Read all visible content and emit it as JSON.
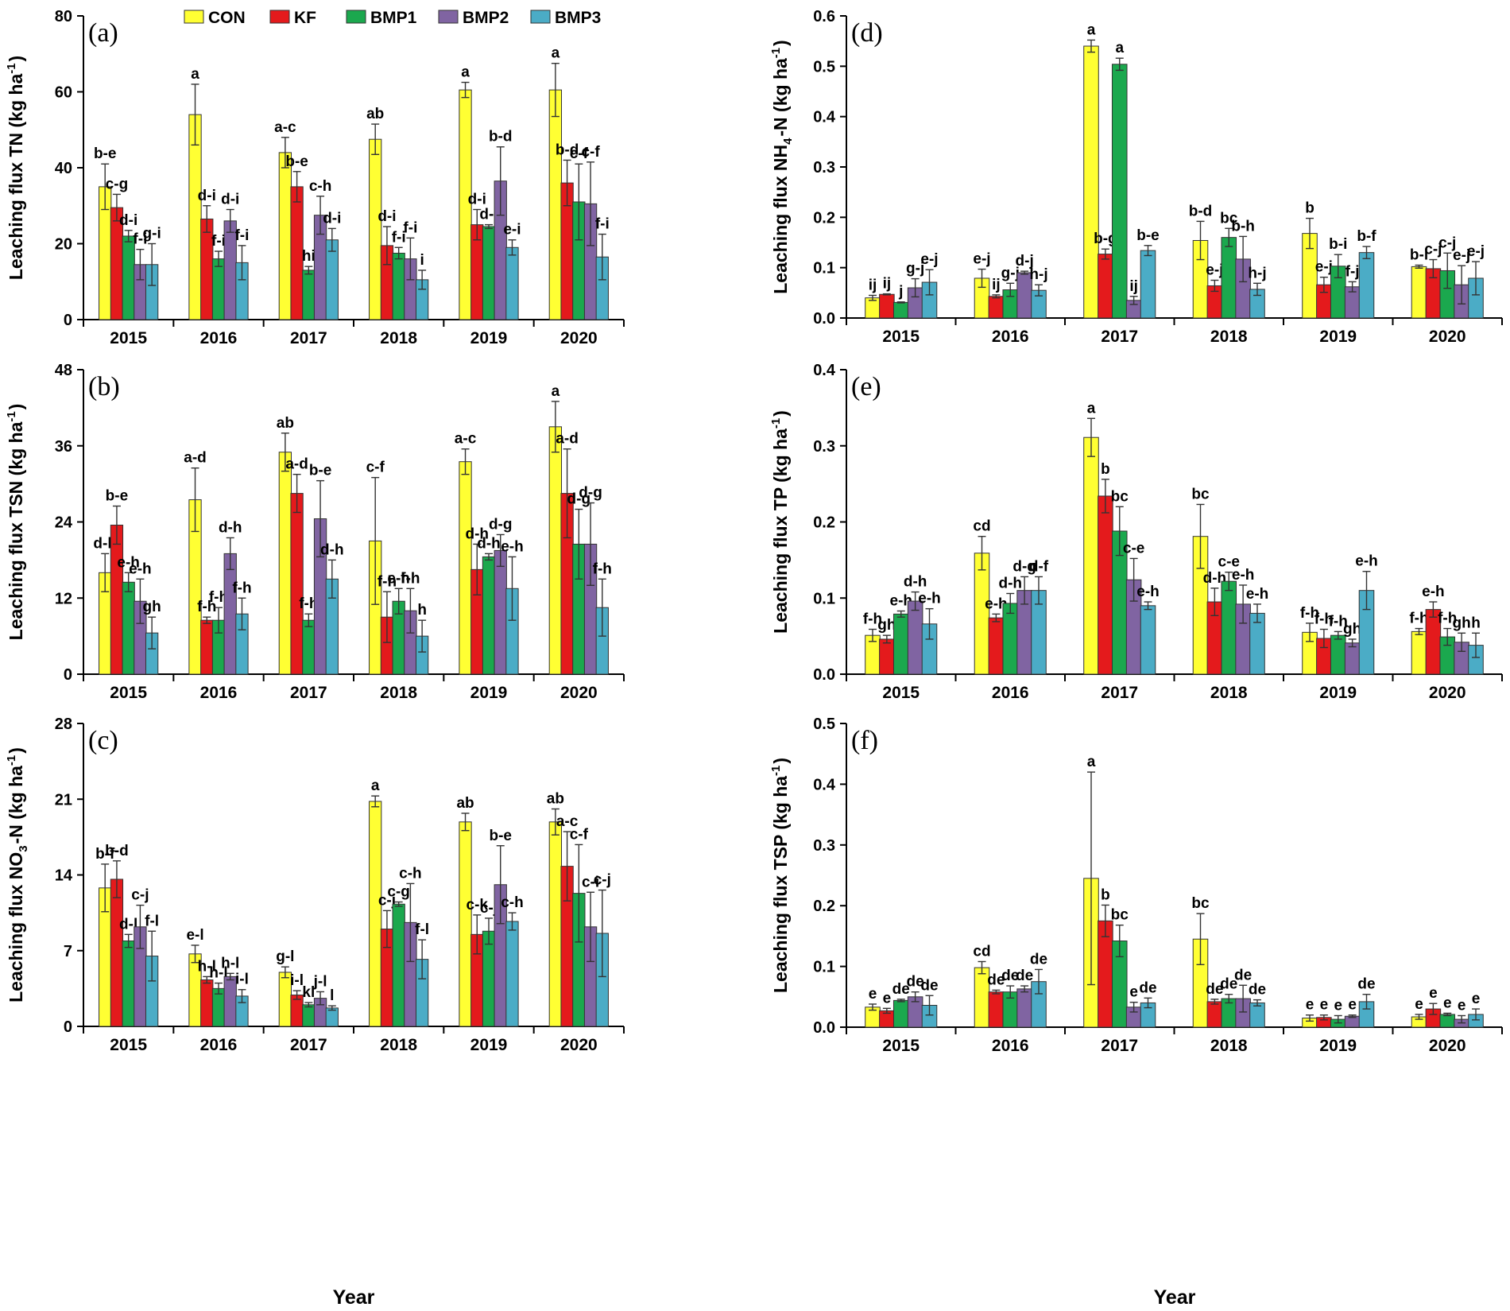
{
  "legend": {
    "entries": [
      {
        "name": "CON",
        "color": "#FFFF33"
      },
      {
        "name": "KF",
        "color": "#E41A1C"
      },
      {
        "name": "BMP1",
        "color": "#1BA84E"
      },
      {
        "name": "BMP2",
        "color": "#8064A2"
      },
      {
        "name": "BMP3",
        "color": "#4BACC6"
      }
    ]
  },
  "xlabel": "Year",
  "chart_data": [
    {
      "type": "bar",
      "panel": "(a)",
      "ylabel": "Leaching flux TN (kg ha-1)",
      "ylim": [
        0,
        80
      ],
      "yticks": [
        "0",
        "20",
        "40",
        "60",
        "80"
      ],
      "categories": [
        "2015",
        "2016",
        "2017",
        "2018",
        "2019",
        "2020"
      ],
      "series": [
        {
          "name": "CON",
          "values": [
            35,
            54,
            44,
            47.5,
            60.5,
            60.5
          ],
          "errors": [
            6,
            8,
            4,
            4,
            2,
            7
          ],
          "labels": [
            "b-e",
            "a",
            "a-c",
            "ab",
            "a",
            "a"
          ]
        },
        {
          "name": "KF",
          "values": [
            29.5,
            26.5,
            35,
            19.5,
            25,
            36
          ],
          "errors": [
            3.5,
            3.5,
            4,
            5,
            4,
            6
          ],
          "labels": [
            "c-g",
            "d-i",
            "b-e",
            "d-i",
            "d-i",
            "b-d"
          ]
        },
        {
          "name": "BMP1",
          "values": [
            22,
            16,
            13,
            17.5,
            24.5,
            31
          ],
          "errors": [
            1.5,
            2,
            1,
            1.5,
            0.5,
            10
          ],
          "labels": [
            "d-i",
            "f-i",
            "hi",
            "f-i",
            "d-i",
            "c-f"
          ]
        },
        {
          "name": "BMP2",
          "values": [
            14.5,
            26,
            27.5,
            16,
            36.5,
            30.5
          ],
          "errors": [
            4,
            3,
            5,
            5.5,
            9,
            11
          ],
          "labels": [
            "f-i",
            "d-i",
            "c-h",
            "f-i",
            "b-d",
            "c-f"
          ]
        },
        {
          "name": "BMP3",
          "values": [
            14.5,
            15,
            21,
            10.5,
            19,
            16.5
          ],
          "errors": [
            5.5,
            4.5,
            3,
            2.5,
            2,
            6
          ],
          "labels": [
            "g-i",
            "f-i",
            "d-i",
            "i",
            "e-i",
            "f-i"
          ]
        }
      ]
    },
    {
      "type": "bar",
      "panel": "(b)",
      "ylabel": "Leaching flux TSN (kg ha-1)",
      "ylim": [
        0,
        48
      ],
      "yticks": [
        "0",
        "12",
        "24",
        "36",
        "48"
      ],
      "categories": [
        "2015",
        "2016",
        "2017",
        "2018",
        "2019",
        "2020"
      ],
      "series": [
        {
          "name": "CON",
          "values": [
            16,
            27.5,
            35,
            21,
            33.5,
            39
          ],
          "errors": [
            3,
            5,
            3,
            10,
            2,
            4
          ],
          "labels": [
            "d-h",
            "a-d",
            "ab",
            "c-f",
            "a-c",
            "a"
          ]
        },
        {
          "name": "KF",
          "values": [
            23.5,
            8.5,
            28.5,
            9,
            16.5,
            28.5
          ],
          "errors": [
            3,
            0.5,
            3,
            4,
            4,
            7
          ],
          "labels": [
            "b-e",
            "f-h",
            "a-d",
            "f-h",
            "d-h",
            "a-d"
          ]
        },
        {
          "name": "BMP1",
          "values": [
            14.5,
            8.5,
            8.5,
            11.5,
            18.5,
            20.5
          ],
          "errors": [
            1.5,
            2,
            1,
            2,
            0.5,
            5.5
          ],
          "labels": [
            "e-h",
            "f-h",
            "f-h",
            "e-h",
            "d-h",
            "d-g"
          ]
        },
        {
          "name": "BMP2",
          "values": [
            11.5,
            19,
            24.5,
            10,
            19.5,
            20.5
          ],
          "errors": [
            3.5,
            2.5,
            6,
            3.5,
            2.5,
            6.5
          ],
          "labels": [
            "e-h",
            "d-h",
            "b-e",
            "f-h",
            "d-g",
            "d-g"
          ]
        },
        {
          "name": "BMP3",
          "values": [
            6.5,
            9.5,
            15,
            6,
            13.5,
            10.5
          ],
          "errors": [
            2.5,
            2.5,
            3,
            2.5,
            5,
            4.5
          ],
          "labels": [
            "gh",
            "f-h",
            "d-h",
            "h",
            "e-h",
            "f-h"
          ]
        }
      ]
    },
    {
      "type": "bar",
      "panel": "(c)",
      "ylabel": "Leaching flux NO3-N (kg ha-1)",
      "ylim": [
        0,
        28
      ],
      "yticks": [
        "0",
        "7",
        "14",
        "21",
        "28"
      ],
      "categories": [
        "2015",
        "2016",
        "2017",
        "2018",
        "2019",
        "2020"
      ],
      "series": [
        {
          "name": "CON",
          "values": [
            12.8,
            6.7,
            5,
            20.8,
            18.9,
            18.9
          ],
          "errors": [
            2.2,
            0.8,
            0.5,
            0.5,
            0.8,
            1.2
          ],
          "labels": [
            "b-f",
            "e-l",
            "g-l",
            "a",
            "ab",
            "ab"
          ]
        },
        {
          "name": "KF",
          "values": [
            13.6,
            4.3,
            2.9,
            9,
            8.5,
            14.8
          ],
          "errors": [
            1.7,
            0.3,
            0.4,
            1.7,
            1.8,
            3.2
          ],
          "labels": [
            "b-d",
            "h-l",
            "i-l",
            "c-j",
            "c-k",
            "a-c"
          ]
        },
        {
          "name": "BMP1",
          "values": [
            7.9,
            3.5,
            2,
            11.3,
            8.8,
            12.3
          ],
          "errors": [
            0.6,
            0.5,
            0.2,
            0.2,
            1.2,
            4.5
          ],
          "labels": [
            "d-l",
            "h-l",
            "kl",
            "c-g",
            "c-j",
            "c-f"
          ]
        },
        {
          "name": "BMP2",
          "values": [
            9.2,
            4.6,
            2.6,
            9.6,
            13.1,
            9.2
          ],
          "errors": [
            2,
            0.3,
            0.6,
            3.6,
            3.6,
            3.2
          ],
          "labels": [
            "c-j",
            "h-l",
            "j-l",
            "c-h",
            "b-e",
            "c-i"
          ]
        },
        {
          "name": "BMP3",
          "values": [
            6.5,
            2.8,
            1.7,
            6.2,
            9.7,
            8.6
          ],
          "errors": [
            2.3,
            0.6,
            0.2,
            1.8,
            0.8,
            4
          ],
          "labels": [
            "f-l",
            "i-l",
            "l",
            "f-l",
            "c-h",
            "c-j"
          ]
        }
      ]
    },
    {
      "type": "bar",
      "panel": "(d)",
      "ylabel": "Leaching flux NH4-N (kg ha-1)",
      "ylim": [
        0,
        0.6
      ],
      "yticks": [
        "0.0",
        "0.1",
        "0.2",
        "0.3",
        "0.4",
        "0.5",
        "0.6"
      ],
      "categories": [
        "2015",
        "2016",
        "2017",
        "2018",
        "2019",
        "2020"
      ],
      "series": [
        {
          "name": "CON",
          "values": [
            0.04,
            0.079,
            0.54,
            0.154,
            0.168,
            0.102
          ],
          "errors": [
            0.005,
            0.018,
            0.012,
            0.038,
            0.03,
            0.003
          ],
          "labels": [
            "ij",
            "e-j",
            "a",
            "b-d",
            "b",
            "b-i"
          ]
        },
        {
          "name": "KF",
          "values": [
            0.047,
            0.043,
            0.127,
            0.064,
            0.066,
            0.098
          ],
          "errors": [
            0.001,
            0.003,
            0.01,
            0.011,
            0.015,
            0.018
          ],
          "labels": [
            "ij",
            "ij",
            "b-g",
            "e-j",
            "e-j",
            "c-j"
          ]
        },
        {
          "name": "BMP1",
          "values": [
            0.031,
            0.056,
            0.504,
            0.16,
            0.103,
            0.094
          ],
          "errors": [
            0.001,
            0.013,
            0.012,
            0.018,
            0.023,
            0.035
          ],
          "labels": [
            "j",
            "g-j",
            "a",
            "bc",
            "b-i",
            "c-j"
          ]
        },
        {
          "name": "BMP2",
          "values": [
            0.06,
            0.09,
            0.035,
            0.117,
            0.062,
            0.066
          ],
          "errors": [
            0.018,
            0.003,
            0.008,
            0.045,
            0.01,
            0.038
          ],
          "labels": [
            "g-j",
            "d-j",
            "ij",
            "b-h",
            "f-j",
            "e-j"
          ]
        },
        {
          "name": "BMP3",
          "values": [
            0.071,
            0.055,
            0.134,
            0.057,
            0.13,
            0.079
          ],
          "errors": [
            0.025,
            0.011,
            0.01,
            0.012,
            0.012,
            0.033
          ],
          "labels": [
            "e-j",
            "h-j",
            "b-e",
            "h-j",
            "b-f",
            "e-j"
          ]
        }
      ]
    },
    {
      "type": "bar",
      "panel": "(e)",
      "ylabel": "Leaching flux TP (kg ha-1)",
      "ylim": [
        0,
        0.4
      ],
      "yticks": [
        "0.0",
        "0.1",
        "0.2",
        "0.3",
        "0.4"
      ],
      "categories": [
        "2015",
        "2016",
        "2017",
        "2018",
        "2019",
        "2020"
      ],
      "series": [
        {
          "name": "CON",
          "values": [
            0.051,
            0.159,
            0.311,
            0.181,
            0.055,
            0.056
          ],
          "errors": [
            0.008,
            0.022,
            0.025,
            0.042,
            0.012,
            0.004
          ],
          "labels": [
            "f-h",
            "cd",
            "a",
            "bc",
            "f-h",
            "f-h"
          ]
        },
        {
          "name": "KF",
          "values": [
            0.046,
            0.074,
            0.234,
            0.095,
            0.047,
            0.085
          ],
          "errors": [
            0.005,
            0.005,
            0.022,
            0.018,
            0.012,
            0.01
          ],
          "labels": [
            "gh",
            "e-h",
            "b",
            "d-h",
            "f-h",
            "e-h"
          ]
        },
        {
          "name": "BMP1",
          "values": [
            0.079,
            0.093,
            0.188,
            0.122,
            0.051,
            0.049
          ],
          "errors": [
            0.004,
            0.013,
            0.032,
            0.012,
            0.005,
            0.011
          ],
          "labels": [
            "e-h",
            "d-h",
            "bc",
            "c-e",
            "f-h",
            "f-h"
          ]
        },
        {
          "name": "BMP2",
          "values": [
            0.096,
            0.11,
            0.124,
            0.092,
            0.041,
            0.042
          ],
          "errors": [
            0.012,
            0.018,
            0.028,
            0.025,
            0.005,
            0.012
          ],
          "labels": [
            "d-h",
            "d-g",
            "c-e",
            "e-h",
            "gh",
            "gh"
          ]
        },
        {
          "name": "BMP3",
          "values": [
            0.066,
            0.11,
            0.09,
            0.08,
            0.11,
            0.038
          ],
          "errors": [
            0.02,
            0.018,
            0.005,
            0.012,
            0.025,
            0.016
          ],
          "labels": [
            "e-h",
            "d-f",
            "e-h",
            "e-h",
            "e-h",
            "h"
          ]
        }
      ]
    },
    {
      "type": "bar",
      "panel": "(f)",
      "ylabel": "Leaching flux TSP (kg ha-1)",
      "ylim": [
        0,
        0.5
      ],
      "yticks": [
        "0.0",
        "0.1",
        "0.2",
        "0.3",
        "0.4",
        "0.5"
      ],
      "categories": [
        "2015",
        "2016",
        "2017",
        "2018",
        "2019",
        "2020"
      ],
      "series": [
        {
          "name": "CON",
          "values": [
            0.033,
            0.098,
            0.245,
            0.145,
            0.015,
            0.017
          ],
          "errors": [
            0.005,
            0.01,
            0.175,
            0.042,
            0.005,
            0.004
          ],
          "labels": [
            "e",
            "cd",
            "a",
            "bc",
            "e",
            "e"
          ]
        },
        {
          "name": "KF",
          "values": [
            0.027,
            0.058,
            0.175,
            0.042,
            0.016,
            0.03
          ],
          "errors": [
            0.004,
            0.003,
            0.026,
            0.004,
            0.004,
            0.009
          ],
          "labels": [
            "e",
            "de",
            "b",
            "de",
            "e",
            "e"
          ]
        },
        {
          "name": "BMP1",
          "values": [
            0.044,
            0.058,
            0.142,
            0.047,
            0.013,
            0.021
          ],
          "errors": [
            0.002,
            0.01,
            0.026,
            0.007,
            0.006,
            0.002
          ],
          "labels": [
            "de",
            "de",
            "bc",
            "de",
            "e",
            "e"
          ]
        },
        {
          "name": "BMP2",
          "values": [
            0.05,
            0.063,
            0.033,
            0.047,
            0.018,
            0.013
          ],
          "errors": [
            0.008,
            0.005,
            0.008,
            0.022,
            0.002,
            0.006
          ],
          "labels": [
            "de",
            "de",
            "e",
            "de",
            "e",
            "e"
          ]
        },
        {
          "name": "BMP3",
          "values": [
            0.036,
            0.075,
            0.04,
            0.04,
            0.042,
            0.021
          ],
          "errors": [
            0.016,
            0.02,
            0.008,
            0.005,
            0.012,
            0.009
          ],
          "labels": [
            "de",
            "de",
            "de",
            "de",
            "de",
            "e"
          ]
        }
      ]
    }
  ]
}
